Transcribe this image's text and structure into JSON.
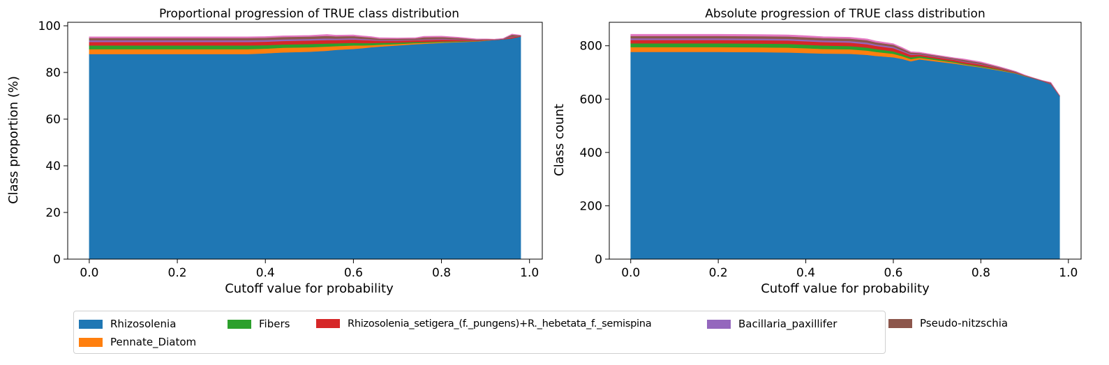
{
  "colors": {
    "Rhizosolenia": "#1f77b4",
    "Pennate_Diatom": "#ff7f0e",
    "Fibers": "#2ca02c",
    "Rhizosolenia_setigera": "#d62728",
    "Bacillaria_paxillifer": "#9467bd",
    "Pseudo-nitzschia": "#8c564b",
    "others": [
      "#e377c2",
      "#7f7f7f",
      "#bcbd22",
      "#17becf"
    ]
  },
  "legend": [
    {
      "label": "Rhizosolenia",
      "color": "#1f77b4"
    },
    {
      "label": "Pennate_Diatom",
      "color": "#ff7f0e"
    },
    {
      "label": "Fibers",
      "color": "#2ca02c"
    },
    {
      "label": "Rhizosolenia_setigera_(f._pungens)+R._hebetata_f._semispina",
      "color": "#d62728"
    },
    {
      "label": "Bacillaria_paxillifer",
      "color": "#9467bd"
    },
    {
      "label": "Pseudo-nitzschia",
      "color": "#8c564b"
    }
  ],
  "chart_data": [
    {
      "type": "area",
      "title": "Proportional progression of TRUE class distribution",
      "xlabel": "Cutoff value for probability",
      "ylabel": "Class proportion (%)",
      "xlim": [
        -0.049,
        1.029
      ],
      "ylim": [
        0,
        101.5
      ],
      "xticks": [
        0.0,
        0.2,
        0.4,
        0.6,
        0.8,
        1.0
      ],
      "xtick_labels": [
        "0.0",
        "0.2",
        "0.4",
        "0.6",
        "0.8",
        "1.0"
      ],
      "yticks": [
        0,
        20,
        40,
        60,
        80,
        100
      ],
      "ytick_labels": [
        "0",
        "20",
        "40",
        "60",
        "80",
        "100"
      ],
      "grid": false,
      "x": [
        0.0,
        0.1,
        0.2,
        0.3,
        0.36,
        0.4,
        0.44,
        0.5,
        0.54,
        0.56,
        0.6,
        0.62,
        0.64,
        0.66,
        0.7,
        0.74,
        0.76,
        0.8,
        0.84,
        0.88,
        0.9,
        0.92,
        0.94,
        0.96,
        0.98
      ],
      "series": [
        {
          "name": "Rhizosolenia",
          "color": "#1f77b4",
          "values": [
            87.9,
            87.9,
            87.9,
            87.9,
            87.9,
            88.2,
            88.6,
            88.9,
            89.3,
            89.7,
            90.1,
            90.4,
            90.8,
            91.1,
            91.6,
            92.1,
            92.3,
            92.7,
            93.0,
            93.3,
            93.6,
            93.9,
            94.2,
            94.6,
            95.4
          ]
        },
        {
          "name": "Pennate_Diatom",
          "color": "#ff7f0e",
          "values": [
            2.1,
            2.1,
            2.1,
            2.1,
            2.1,
            2.0,
            2.0,
            1.9,
            1.8,
            1.6,
            1.5,
            1.2,
            0.9,
            0.8,
            0.6,
            0.5,
            0.4,
            0.3,
            0.2,
            0.1,
            0.1,
            0.0,
            0.0,
            0.0,
            0.0
          ]
        },
        {
          "name": "Fibers",
          "color": "#2ca02c",
          "values": [
            1.6,
            1.6,
            1.6,
            1.6,
            1.6,
            1.5,
            1.4,
            1.4,
            1.3,
            1.2,
            1.1,
            1.0,
            0.9,
            0.8,
            0.6,
            0.5,
            0.4,
            0.3,
            0.2,
            0.1,
            0.1,
            0.0,
            0.0,
            0.0,
            0.0
          ]
        },
        {
          "name": "Rhizosolenia_setigera_(f._pungens)+R._hebetata_f._semispina",
          "color": "#d62728",
          "values": [
            1.5,
            1.5,
            1.5,
            1.5,
            1.5,
            1.5,
            1.5,
            1.5,
            1.5,
            1.4,
            1.4,
            1.3,
            1.2,
            0.9,
            0.8,
            0.7,
            0.8,
            0.8,
            0.6,
            0.3,
            0.2,
            0.1,
            0.1,
            0.5,
            0.2
          ]
        },
        {
          "name": "Bacillaria_paxillifer",
          "color": "#9467bd",
          "values": [
            0.7,
            0.7,
            0.7,
            0.7,
            0.7,
            0.7,
            0.7,
            0.7,
            0.7,
            0.6,
            0.6,
            0.5,
            0.4,
            0.3,
            0.3,
            0.2,
            0.3,
            0.3,
            0.2,
            0.1,
            0.1,
            0.1,
            0.1,
            0.2,
            0.1
          ]
        },
        {
          "name": "Pseudo-nitzschia",
          "color": "#8c564b",
          "values": [
            1.0,
            1.0,
            1.0,
            1.0,
            1.0,
            1.0,
            1.0,
            1.0,
            1.1,
            1.0,
            0.9,
            0.9,
            0.8,
            0.6,
            0.6,
            0.6,
            0.9,
            0.8,
            0.6,
            0.3,
            0.2,
            0.1,
            0.1,
            0.9,
            0.2
          ]
        },
        {
          "color": "#e377c2",
          "values": [
            0.5,
            0.5,
            0.5,
            0.5,
            0.5,
            0.5,
            0.5,
            0.5,
            0.6,
            0.5,
            0.5,
            0.4,
            0.4,
            0.4,
            0.3,
            0.3,
            0.4,
            0.4,
            0.3,
            0.2,
            0.1,
            0.1,
            0.1,
            0.3,
            0.1
          ]
        }
      ]
    },
    {
      "type": "area",
      "title": "Absolute progression of TRUE class distribution",
      "xlabel": "Cutoff value for probability",
      "ylabel": "Class count",
      "xlim": [
        -0.049,
        1.029
      ],
      "ylim": [
        0,
        888
      ],
      "xticks": [
        0.0,
        0.2,
        0.4,
        0.6,
        0.8,
        1.0
      ],
      "xtick_labels": [
        "0.0",
        "0.2",
        "0.4",
        "0.6",
        "0.8",
        "1.0"
      ],
      "yticks": [
        0,
        200,
        400,
        600,
        800
      ],
      "ytick_labels": [
        "0",
        "200",
        "400",
        "600",
        "800"
      ],
      "grid": false,
      "x": [
        0.0,
        0.1,
        0.2,
        0.3,
        0.36,
        0.4,
        0.44,
        0.5,
        0.54,
        0.56,
        0.6,
        0.62,
        0.64,
        0.66,
        0.7,
        0.74,
        0.76,
        0.8,
        0.84,
        0.88,
        0.9,
        0.92,
        0.94,
        0.96,
        0.98
      ],
      "series": [
        {
          "name": "Rhizosolenia",
          "color": "#1f77b4",
          "values": [
            777,
            777,
            777,
            776,
            775,
            773,
            771,
            770,
            766,
            762,
            757,
            751,
            742,
            749,
            741,
            733,
            728,
            719,
            708,
            696,
            686,
            678,
            668,
            656,
            612
          ]
        },
        {
          "name": "Pennate_Diatom",
          "color": "#ff7f0e",
          "values": [
            18,
            18,
            18,
            18,
            18,
            18,
            17,
            17,
            16,
            15,
            13,
            10,
            8,
            6,
            5,
            4,
            3,
            2,
            2,
            1,
            1,
            0,
            0,
            0,
            0
          ]
        },
        {
          "name": "Fibers",
          "color": "#2ca02c",
          "values": [
            14,
            14,
            14,
            14,
            14,
            13,
            13,
            12,
            11,
            11,
            9,
            8,
            7,
            6,
            5,
            4,
            3,
            3,
            2,
            1,
            1,
            0,
            0,
            0,
            0
          ]
        },
        {
          "name": "Rhizosolenia_setigera_(f._pungens)+R._hebetata_f._semispina",
          "color": "#d62728",
          "values": [
            13,
            13,
            13,
            13,
            13,
            13,
            13,
            13,
            13,
            12,
            12,
            10,
            9,
            6,
            6,
            6,
            6,
            6,
            4,
            2,
            1,
            1,
            1,
            2,
            1
          ]
        },
        {
          "name": "Bacillaria_paxillifer",
          "color": "#9467bd",
          "values": [
            6,
            6,
            6,
            6,
            6,
            6,
            6,
            6,
            6,
            5,
            5,
            4,
            3,
            2,
            2,
            2,
            2,
            2,
            1,
            1,
            0,
            0,
            0,
            1,
            0
          ]
        },
        {
          "name": "Pseudo-nitzschia",
          "color": "#8c564b",
          "values": [
            9,
            9,
            9,
            9,
            9,
            9,
            9,
            9,
            9,
            8,
            8,
            7,
            6,
            4,
            4,
            4,
            6,
            5,
            4,
            2,
            1,
            1,
            1,
            3,
            1
          ]
        },
        {
          "color": "#e377c2",
          "values": [
            6,
            6,
            6,
            6,
            6,
            6,
            5,
            5,
            5,
            5,
            4,
            4,
            3,
            3,
            2,
            2,
            3,
            3,
            2,
            1,
            1,
            0,
            0,
            1,
            0
          ]
        }
      ]
    }
  ]
}
